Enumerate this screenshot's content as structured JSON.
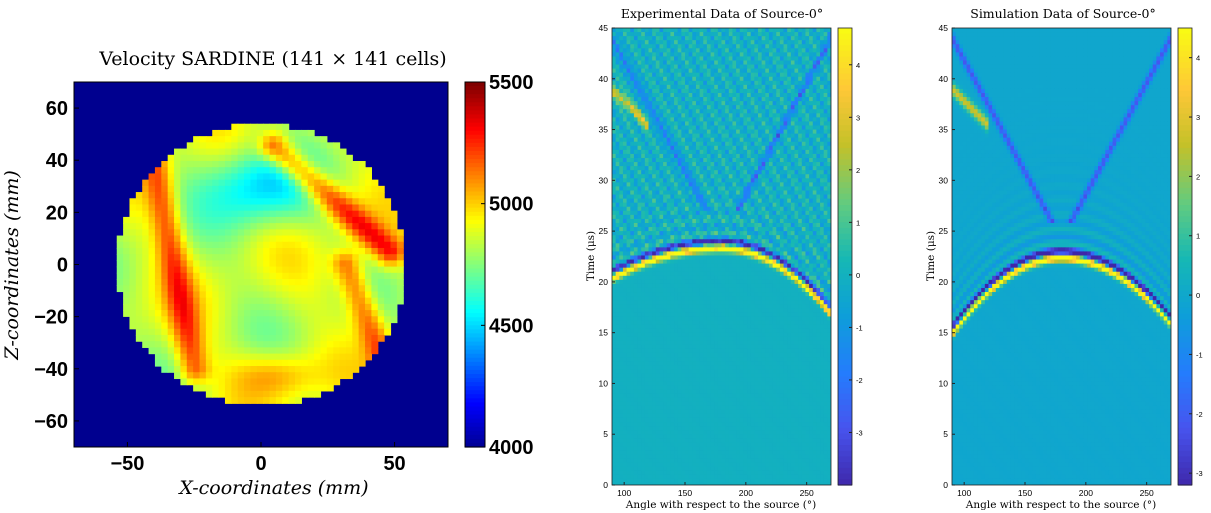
{
  "chart_data": [
    {
      "type": "heatmap",
      "title": "Velocity SARDINE (141 × 141 cells)",
      "xlabel": "X-coordinates (mm)",
      "ylabel": "Z-coordinates (mm)",
      "xlim": [
        -70,
        70
      ],
      "ylim": [
        -70,
        70
      ],
      "xticks": [
        "−50",
        "0",
        "50"
      ],
      "xtick_values": [
        -50,
        0,
        50
      ],
      "yticks": [
        "60",
        "40",
        "20",
        "0",
        "−20",
        "−40",
        "−60"
      ],
      "ytick_values": [
        60,
        40,
        20,
        0,
        -20,
        -40,
        -60
      ],
      "grid": {
        "cells_x": 141,
        "cells_y": 141
      },
      "disk_radius_mm": 54,
      "background_value": 4000,
      "colormap": "jet",
      "colorbar": {
        "range": [
          4000,
          5500
        ],
        "ticks": [
          "5500",
          "5000",
          "4500",
          "4000"
        ],
        "tick_values": [
          5500,
          5000,
          4500,
          4000
        ]
      },
      "features": [
        {
          "kind": "high-velocity band",
          "x": [
            -40,
            -25
          ],
          "z": [
            40,
            -40
          ],
          "value": 5200
        },
        {
          "kind": "high-velocity band",
          "x": [
            5,
            48
          ],
          "z": [
            45,
            5
          ],
          "value": 5300
        },
        {
          "kind": "high-velocity band",
          "x": [
            32,
            45
          ],
          "z": [
            0,
            -35
          ],
          "value": 5200
        },
        {
          "kind": "high-velocity region",
          "x": [
            -10,
            20
          ],
          "z": [
            -35,
            -50
          ],
          "value": 5100
        },
        {
          "kind": "low-velocity region",
          "x": [
            -20,
            20
          ],
          "z": [
            45,
            15
          ],
          "value": 4500
        }
      ]
    },
    {
      "type": "heatmap",
      "title": "Experimental Data of Source-0°",
      "xlabel": "Angle with respect to the source (°)",
      "ylabel": "Time (μs)",
      "xlim": [
        90,
        270
      ],
      "ylim": [
        0,
        45
      ],
      "xticks": [
        "100",
        "150",
        "200",
        "250"
      ],
      "xtick_values": [
        100,
        150,
        200,
        250
      ],
      "yticks": [
        "0",
        "5",
        "10",
        "15",
        "20",
        "25",
        "30",
        "35",
        "40",
        "45"
      ],
      "ytick_values": [
        0,
        5,
        10,
        15,
        20,
        25,
        30,
        35,
        40,
        45
      ],
      "colormap": "parula",
      "colorbar": {
        "range": [
          -4,
          4.7
        ],
        "ticks": [
          "4",
          "3",
          "2",
          "1",
          "0",
          "-1",
          "-2",
          "-3"
        ],
        "tick_values": [
          4,
          3,
          2,
          1,
          0,
          -1,
          -2,
          -3
        ]
      },
      "first_arrival": {
        "apex_angle": 180,
        "apex_time": 23,
        "edge_time_at_90": 20,
        "edge_time_at_270": 16.5,
        "amplitude": 4.5
      },
      "noise_level": 0.35
    },
    {
      "type": "heatmap",
      "title": "Simulation Data of Source-0°",
      "xlabel": "Angle with respect to the source (°)",
      "ylabel": "Time (μs)",
      "xlim": [
        90,
        270
      ],
      "ylim": [
        0,
        45
      ],
      "xticks": [
        "100",
        "150",
        "200",
        "250"
      ],
      "xtick_values": [
        100,
        150,
        200,
        250
      ],
      "yticks": [
        "0",
        "5",
        "10",
        "15",
        "20",
        "25",
        "30",
        "35",
        "40",
        "45"
      ],
      "ytick_values": [
        0,
        5,
        10,
        15,
        20,
        25,
        30,
        35,
        40,
        45
      ],
      "colormap": "parula",
      "colorbar": {
        "range": [
          -3.2,
          4.5
        ],
        "ticks": [
          "4",
          "3",
          "2",
          "1",
          "0",
          "-1",
          "-2",
          "-3"
        ],
        "tick_values": [
          4,
          3,
          2,
          1,
          0,
          -1,
          -2,
          -3
        ]
      },
      "first_arrival": {
        "apex_angle": 180,
        "apex_time": 22,
        "edge_time_at_90": 14.5,
        "edge_time_at_270": 15.5,
        "amplitude": 4.3
      },
      "noise_level": 0.0
    }
  ]
}
